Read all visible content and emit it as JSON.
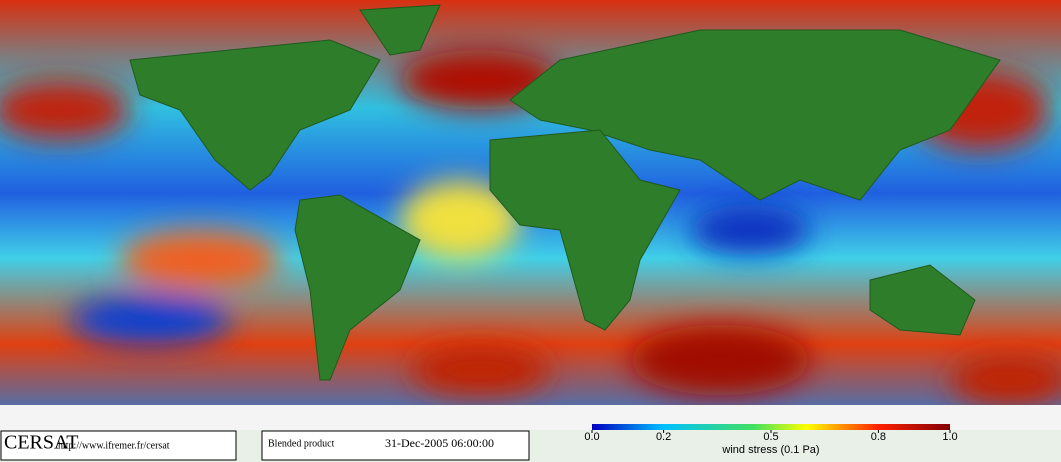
{
  "footer": {
    "logo": "CERSAT",
    "url": "http://www.ifremer.fr/cersat",
    "product": "Blended product",
    "date": "31-Dec-2005 06:00:00"
  },
  "colorbar": {
    "title": "wind stress (0.1 Pa)",
    "lim": [
      0,
      1
    ],
    "ticks": [
      {
        "value": 0,
        "label": "0.0"
      },
      0.2,
      0.5,
      0.8,
      {
        "value": 1,
        "label": "1.0"
      }
    ]
  }
}
